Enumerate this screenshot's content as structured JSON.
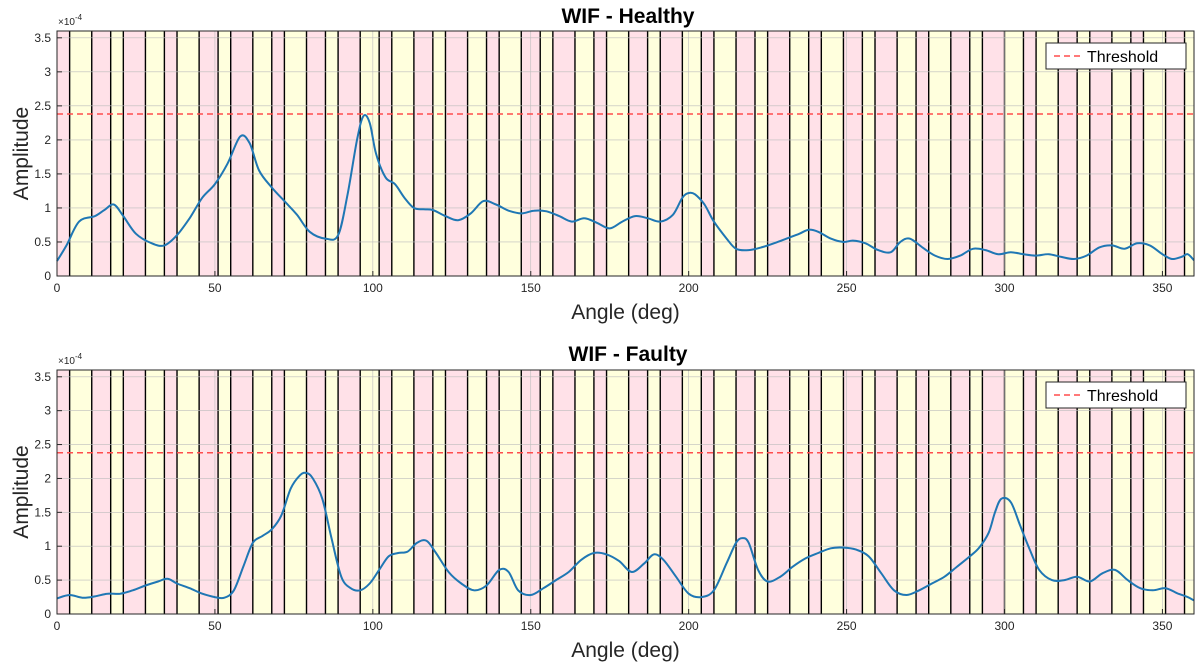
{
  "chart_data": [
    {
      "type": "line",
      "title": "WIF - Healthy",
      "xlabel": "Angle (deg)",
      "ylabel": "Amplitude",
      "y_multiplier": "×10",
      "y_multiplier_exp": "-4",
      "xlim": [
        0,
        360
      ],
      "ylim": [
        0,
        3.6
      ],
      "xticks": [
        "0",
        "50",
        "100",
        "150",
        "200",
        "250",
        "300",
        "350"
      ],
      "yticks": [
        "0",
        "0.5",
        "1",
        "1.5",
        "2",
        "2.5",
        "3",
        "3.5"
      ],
      "grid": true,
      "legend_position": "top-right",
      "threshold": {
        "name": "Threshold",
        "value": 2.38,
        "color": "#ff4d4d"
      },
      "series": [
        {
          "color": "#1f77b4",
          "x": [
            0,
            3,
            7,
            12,
            15,
            18,
            21,
            25,
            30,
            34,
            38,
            42,
            46,
            50,
            54,
            58,
            61,
            64,
            68,
            72,
            76,
            80,
            85,
            89,
            92,
            95,
            97,
            99,
            101,
            104,
            107,
            110,
            113,
            116,
            119,
            123,
            127,
            131,
            135,
            139,
            143,
            147,
            151,
            155,
            159,
            163,
            167,
            171,
            175,
            179,
            183,
            187,
            191,
            195,
            198,
            200,
            202,
            205,
            208,
            212,
            215,
            219,
            223,
            227,
            231,
            235,
            238,
            241,
            245,
            249,
            252,
            256,
            260,
            264,
            267,
            270,
            274,
            278,
            282,
            286,
            290,
            294,
            298,
            302,
            306,
            310,
            314,
            318,
            322,
            326,
            330,
            334,
            338,
            342,
            346,
            350,
            353,
            356,
            358,
            360
          ],
          "values": [
            0.22,
            0.45,
            0.8,
            0.88,
            0.97,
            1.05,
            0.88,
            0.62,
            0.48,
            0.45,
            0.6,
            0.85,
            1.15,
            1.35,
            1.65,
            2.05,
            1.95,
            1.55,
            1.3,
            1.1,
            0.9,
            0.65,
            0.55,
            0.6,
            1.2,
            2.0,
            2.35,
            2.25,
            1.8,
            1.45,
            1.35,
            1.15,
            1.0,
            0.98,
            0.97,
            0.88,
            0.82,
            0.92,
            1.1,
            1.05,
            0.96,
            0.92,
            0.96,
            0.95,
            0.88,
            0.8,
            0.85,
            0.78,
            0.7,
            0.8,
            0.88,
            0.85,
            0.8,
            0.9,
            1.15,
            1.22,
            1.2,
            1.05,
            0.8,
            0.55,
            0.4,
            0.38,
            0.42,
            0.48,
            0.55,
            0.62,
            0.68,
            0.65,
            0.55,
            0.5,
            0.52,
            0.48,
            0.38,
            0.35,
            0.5,
            0.55,
            0.42,
            0.3,
            0.25,
            0.3,
            0.4,
            0.38,
            0.32,
            0.35,
            0.32,
            0.3,
            0.32,
            0.28,
            0.25,
            0.3,
            0.42,
            0.45,
            0.4,
            0.48,
            0.45,
            0.32,
            0.25,
            0.28,
            0.32,
            0.23
          ]
        }
      ]
    },
    {
      "type": "line",
      "title": "WIF - Faulty",
      "xlabel": "Angle (deg)",
      "ylabel": "Amplitude",
      "y_multiplier": "×10",
      "y_multiplier_exp": "-4",
      "xlim": [
        0,
        360
      ],
      "ylim": [
        0,
        3.6
      ],
      "xticks": [
        "0",
        "50",
        "100",
        "150",
        "200",
        "250",
        "300",
        "350"
      ],
      "yticks": [
        "0",
        "0.5",
        "1",
        "1.5",
        "2",
        "2.5",
        "3",
        "3.5"
      ],
      "grid": true,
      "legend_position": "top-right",
      "threshold": {
        "name": "Threshold",
        "value": 2.38,
        "color": "#ff4d4d"
      },
      "series": [
        {
          "color": "#1f77b4",
          "x": [
            0,
            4,
            8,
            12,
            16,
            20,
            24,
            28,
            32,
            35,
            38,
            42,
            46,
            50,
            53,
            56,
            59,
            62,
            65,
            68,
            71,
            74,
            77,
            79,
            81,
            84,
            87,
            90,
            93,
            96,
            99,
            102,
            105,
            108,
            111,
            114,
            117,
            120,
            124,
            128,
            132,
            136,
            140,
            143,
            146,
            150,
            154,
            158,
            162,
            166,
            170,
            174,
            178,
            182,
            186,
            189,
            192,
            196,
            200,
            204,
            208,
            212,
            215,
            217,
            219,
            222,
            225,
            229,
            233,
            237,
            241,
            245,
            249,
            253,
            257,
            261,
            265,
            269,
            273,
            277,
            281,
            285,
            289,
            292,
            295,
            297,
            299,
            302,
            305,
            308,
            311,
            315,
            319,
            323,
            327,
            331,
            335,
            339,
            343,
            347,
            351,
            355,
            358,
            360
          ],
          "values": [
            0.23,
            0.28,
            0.24,
            0.26,
            0.3,
            0.3,
            0.35,
            0.42,
            0.48,
            0.52,
            0.45,
            0.38,
            0.3,
            0.25,
            0.24,
            0.35,
            0.7,
            1.05,
            1.15,
            1.25,
            1.45,
            1.85,
            2.05,
            2.08,
            2.0,
            1.7,
            1.1,
            0.55,
            0.38,
            0.35,
            0.45,
            0.65,
            0.85,
            0.9,
            0.92,
            1.05,
            1.08,
            0.9,
            0.62,
            0.45,
            0.35,
            0.42,
            0.65,
            0.62,
            0.35,
            0.28,
            0.38,
            0.5,
            0.62,
            0.8,
            0.9,
            0.88,
            0.78,
            0.62,
            0.75,
            0.88,
            0.8,
            0.55,
            0.3,
            0.25,
            0.35,
            0.75,
            1.05,
            1.12,
            1.05,
            0.65,
            0.48,
            0.55,
            0.7,
            0.82,
            0.9,
            0.97,
            0.98,
            0.95,
            0.85,
            0.6,
            0.35,
            0.28,
            0.35,
            0.45,
            0.55,
            0.7,
            0.85,
            0.98,
            1.2,
            1.5,
            1.7,
            1.65,
            1.3,
            0.95,
            0.65,
            0.5,
            0.5,
            0.55,
            0.48,
            0.6,
            0.65,
            0.5,
            0.38,
            0.35,
            0.38,
            0.3,
            0.25,
            0.2
          ]
        }
      ]
    }
  ]
}
